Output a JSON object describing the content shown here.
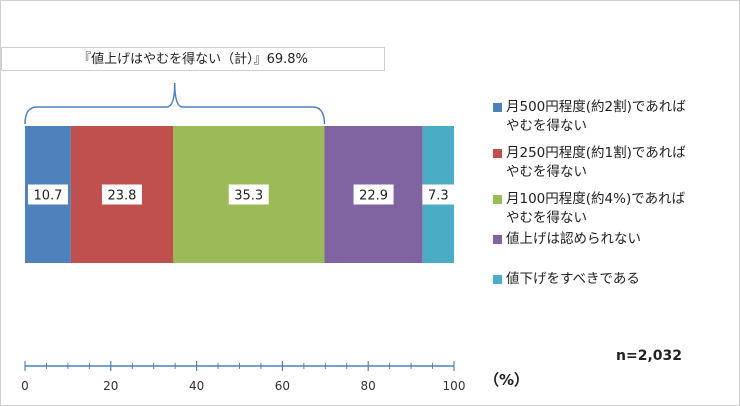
{
  "chart_data": {
    "type": "bar",
    "orientation": "horizontal",
    "stacked": true,
    "xlim": [
      0,
      100
    ],
    "x_ticks": [
      "0",
      "20",
      "40",
      "60",
      "80",
      "100"
    ],
    "unit_label": "（%）",
    "note": "n=2,032",
    "bracket_label": "『値上げはやむを得ない（計）』69.8%",
    "series": [
      {
        "name": "月500円程度(約2割)であれば\nやむを得ない",
        "value": 10.7,
        "label": "10.7",
        "color": "#4f81bd"
      },
      {
        "name": "月250円程度(約1割)であれば\nやむを得ない",
        "value": 23.8,
        "label": "23.8",
        "color": "#c0504d"
      },
      {
        "name": "月100円程度(約4%)であれば\nやむを得ない",
        "value": 35.3,
        "label": "35.3",
        "color": "#9bbb59"
      },
      {
        "name": "値上げは認められない",
        "value": 22.9,
        "label": "22.9",
        "color": "#8064a2"
      },
      {
        "name": "値下げをすべきである",
        "value": 7.3,
        "label": "7.3",
        "color": "#4bacc6"
      }
    ],
    "bracket_range": [
      0,
      69.8
    ],
    "grid": false,
    "legend_position": "right"
  }
}
